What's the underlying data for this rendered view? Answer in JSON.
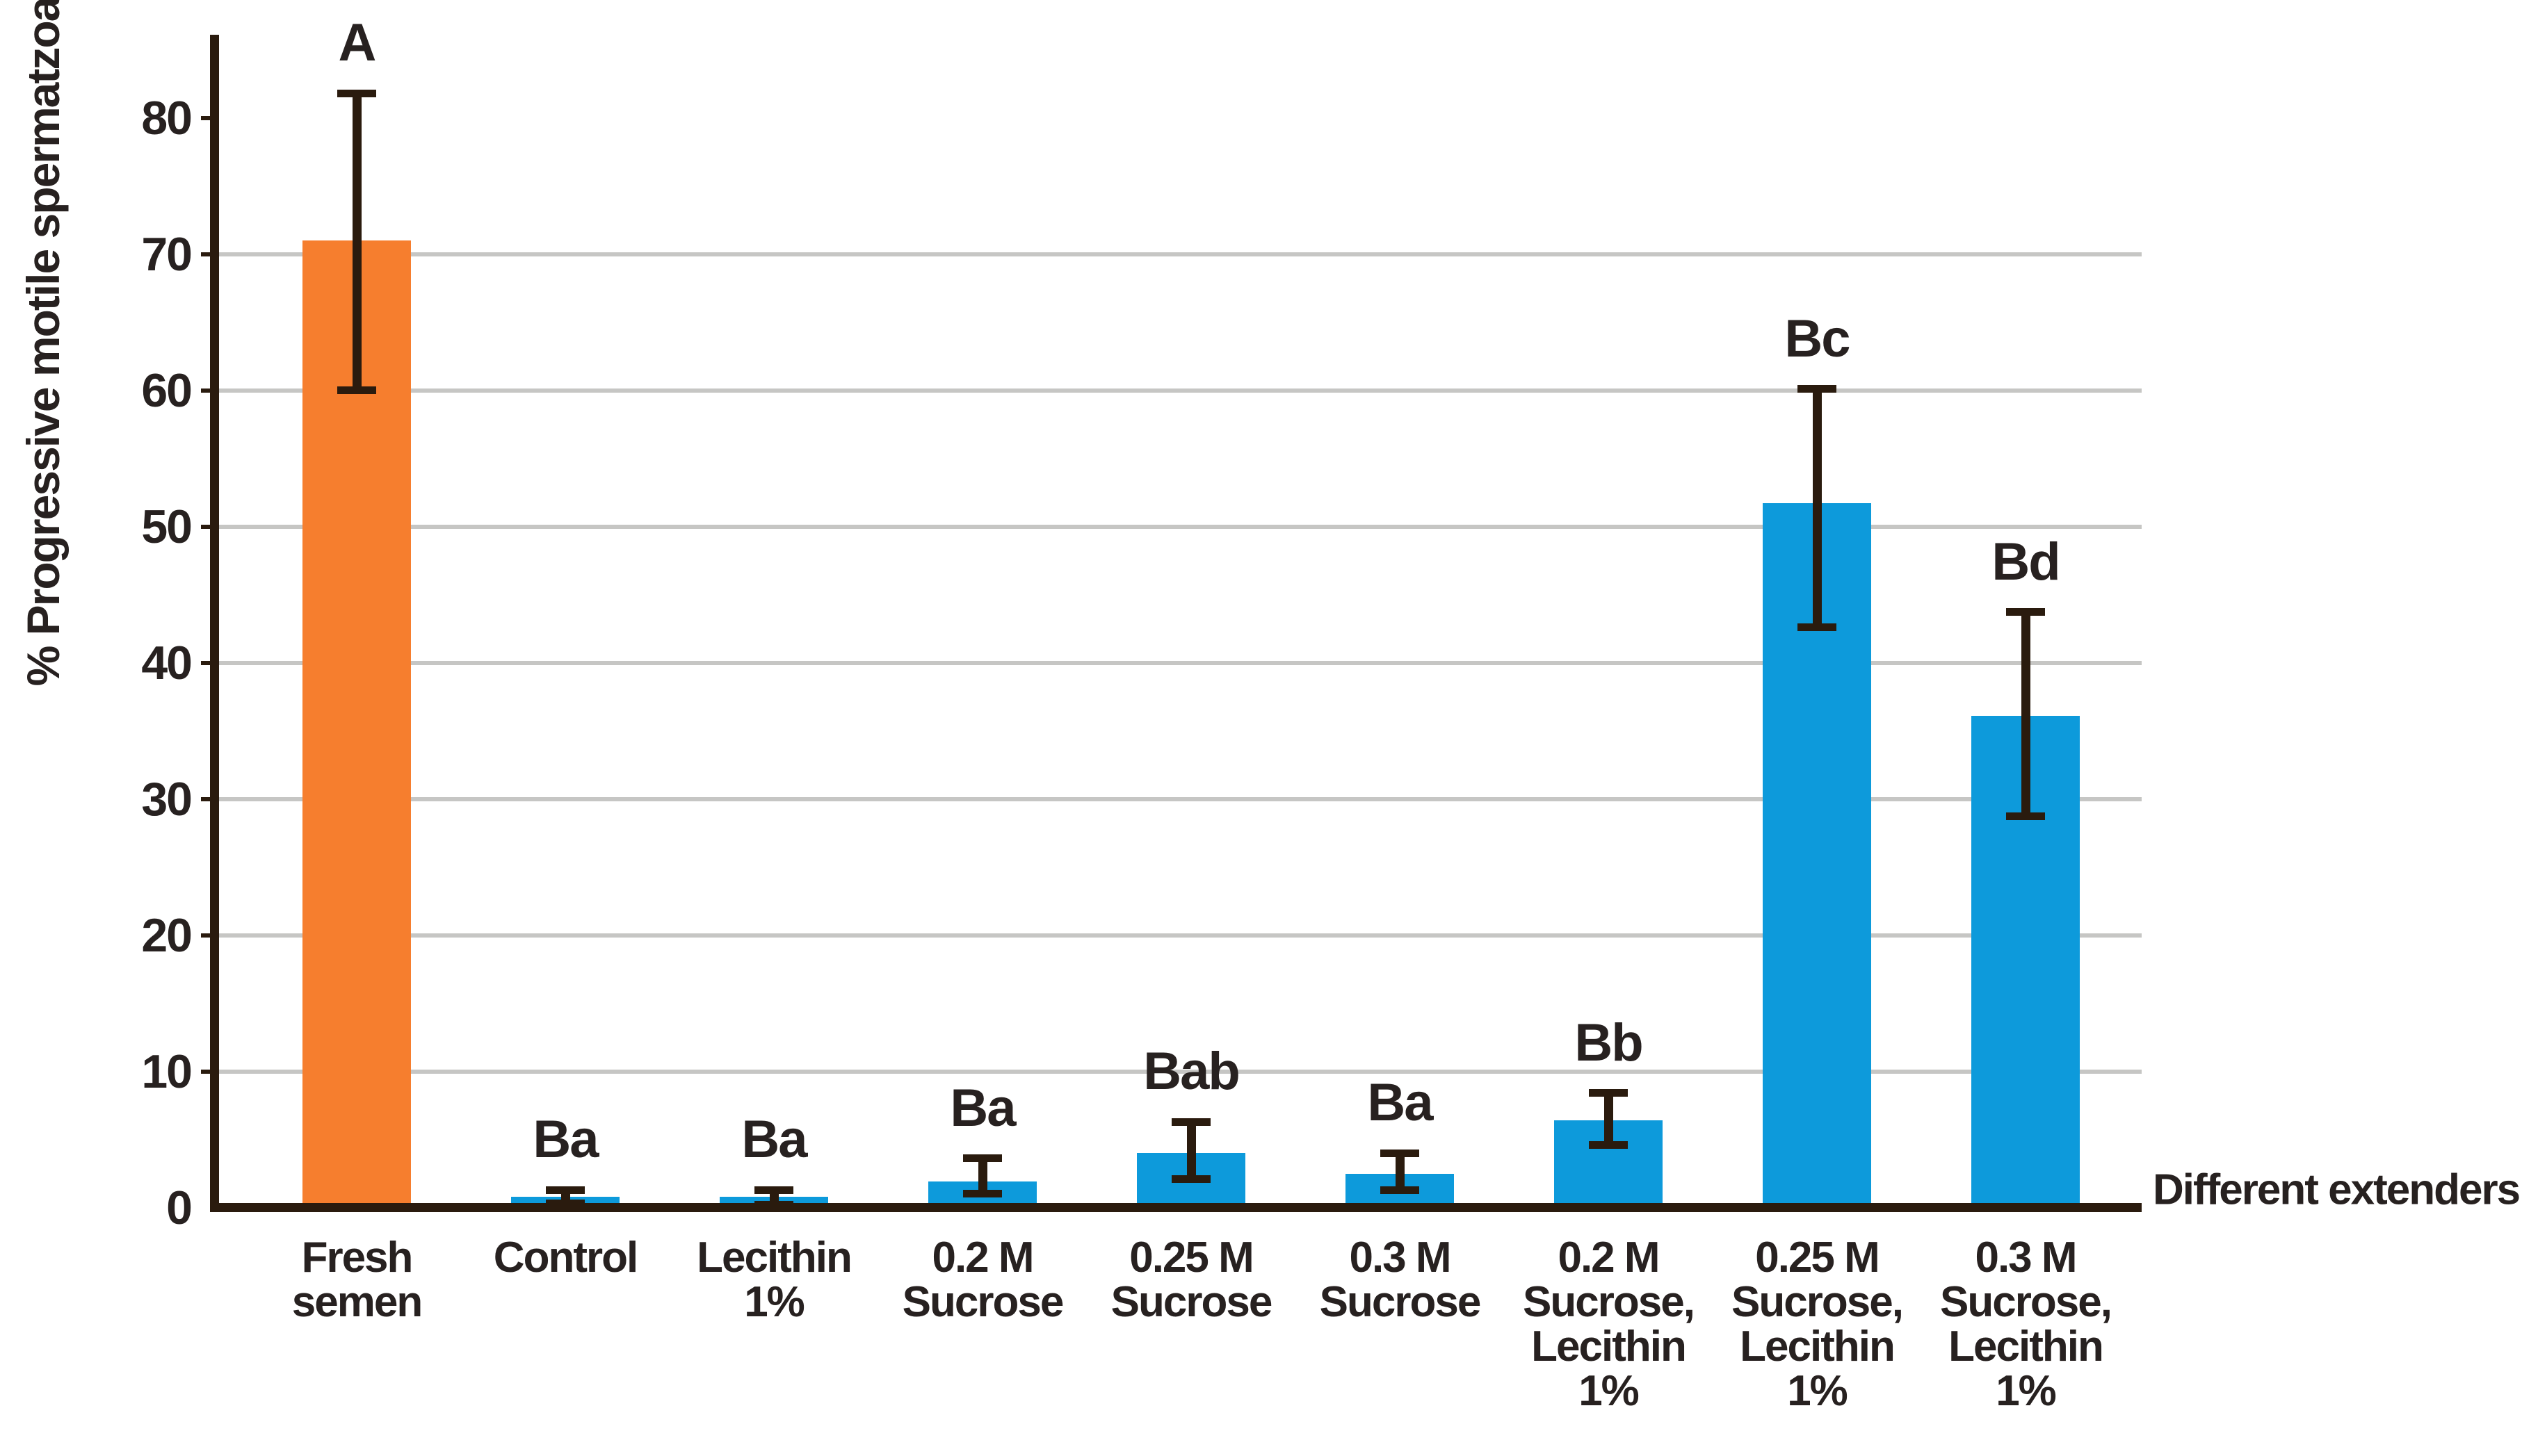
{
  "chart_data": {
    "type": "bar",
    "title": "",
    "ylabel": "% Progressive motile spermatzoa",
    "xlabel": "Different extenders",
    "ylim": [
      0,
      85
    ],
    "yticks": [
      0,
      10,
      20,
      30,
      40,
      50,
      60,
      70,
      80
    ],
    "gridlines": [
      10,
      20,
      30,
      40,
      50,
      60,
      70
    ],
    "grid": "horizontal-only",
    "legend": "none",
    "error_bars": true,
    "bars": [
      {
        "category": "Fresh semen",
        "label_lines": [
          "Fresh",
          "semen"
        ],
        "value": 71.0,
        "error_low": 60.0,
        "error_high": 81.8,
        "sig_letter": "A",
        "color": "#F67E2E"
      },
      {
        "category": "Control",
        "label_lines": [
          "Control"
        ],
        "value": 0.8,
        "error_low": 0.3,
        "error_high": 1.3,
        "sig_letter": "Ba",
        "color": "#0D9ADB"
      },
      {
        "category": "Lecithin 1%",
        "label_lines": [
          "Lecithin",
          "1%"
        ],
        "value": 0.8,
        "error_low": 0.2,
        "error_high": 1.3,
        "sig_letter": "Ba",
        "color": "#0D9ADB"
      },
      {
        "category": "0.2 M Sucrose",
        "label_lines": [
          "0.2 M",
          "Sucrose"
        ],
        "value": 1.9,
        "error_low": 1.0,
        "error_high": 3.6,
        "sig_letter": "Ba",
        "color": "#0D9ADB"
      },
      {
        "category": "0.25 M Sucrose",
        "label_lines": [
          "0.25 M",
          "Sucrose"
        ],
        "value": 4.0,
        "error_low": 2.1,
        "error_high": 6.3,
        "sig_letter": "Bab",
        "color": "#0D9ADB"
      },
      {
        "category": "0.3 M Sucrose",
        "label_lines": [
          "0.3 M",
          "Sucrose"
        ],
        "value": 2.5,
        "error_low": 1.3,
        "error_high": 4.0,
        "sig_letter": "Ba",
        "color": "#0D9ADB"
      },
      {
        "category": "0.2 M Sucrose, Lecithin 1%",
        "label_lines": [
          "0.2 M",
          "Sucrose,",
          "Lecithin",
          "1%"
        ],
        "value": 6.4,
        "error_low": 4.6,
        "error_high": 8.4,
        "sig_letter": "Bb",
        "color": "#0D9ADB"
      },
      {
        "category": "0.25 M Sucrose, Lecithin 1%",
        "label_lines": [
          "0.25 M",
          "Sucrose,",
          "Lecithin",
          "1%"
        ],
        "value": 51.7,
        "error_low": 42.6,
        "error_high": 60.1,
        "sig_letter": "Bc",
        "color": "#0D9ADB"
      },
      {
        "category": "0.3 M Sucrose, Lecithin 1%",
        "label_lines": [
          "0.3 M",
          "Sucrose,",
          "Lecithin",
          "1%"
        ],
        "value": 36.1,
        "error_low": 28.7,
        "error_high": 43.7,
        "sig_letter": "Bd",
        "color": "#0D9ADB"
      }
    ],
    "colors": {
      "fresh_semen_bar": "#F67E2E",
      "extender_bar": "#0D9ADB",
      "axis": "#2A1B0E",
      "error_bar": "#2A1B0E",
      "gridline": "#C6C6C4",
      "text": "#272120",
      "background": "#FFFFFF"
    }
  }
}
